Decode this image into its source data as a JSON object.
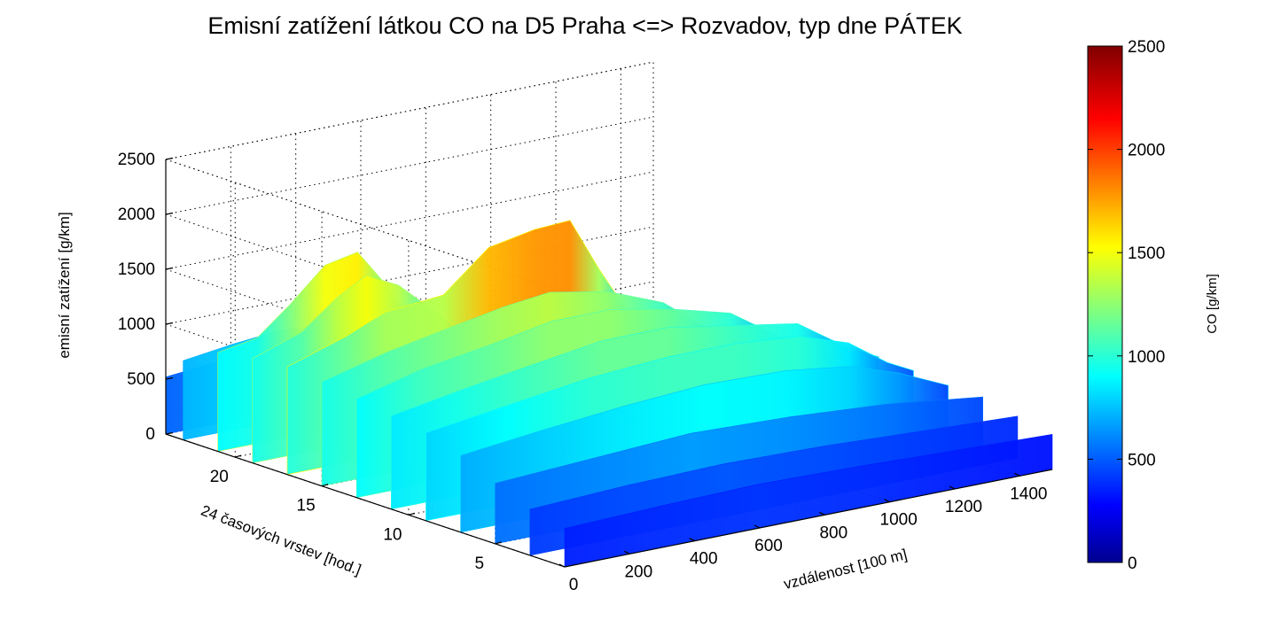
{
  "chart_data": {
    "type": "surface",
    "title": "Emisní zatížení látkou CO na D5 Praha <=> Rozvadov, typ dne PÁTEK",
    "xlabel": "vzdálenost [100 m]",
    "ylabel": "24 časových vrstev [hod.]",
    "zlabel": "emisní zatížení [g/km]",
    "xlim": [
      0,
      1500
    ],
    "ylim": [
      1,
      24
    ],
    "zlim": [
      0,
      2500
    ],
    "x_ticks": [
      "0",
      "200",
      "400",
      "600",
      "800",
      "1000",
      "1200",
      "1400"
    ],
    "y_ticks": [
      "5",
      "10",
      "15",
      "20"
    ],
    "z_ticks": [
      "0",
      "500",
      "1000",
      "1500",
      "2000",
      "2500"
    ],
    "grid": true,
    "colormap": "jet",
    "colorbar": {
      "label": "CO [g/km]",
      "ticks": [
        "0",
        "500",
        "1000",
        "1500",
        "2000",
        "2500"
      ],
      "range": [
        0,
        2500
      ],
      "colors": [
        "#00008f",
        "#0000ff",
        "#00ffff",
        "#ffff00",
        "#ff0000",
        "#800000"
      ]
    },
    "profiles": [
      {
        "hour": 24,
        "points": [
          [
            0,
            520
          ],
          [
            150,
            560
          ],
          [
            300,
            600
          ],
          [
            380,
            580
          ],
          [
            480,
            500
          ]
        ]
      },
      {
        "hour": 23,
        "points": [
          [
            0,
            720
          ],
          [
            150,
            780
          ],
          [
            300,
            820
          ],
          [
            400,
            790
          ],
          [
            500,
            700
          ]
        ]
      },
      {
        "hour": 21,
        "points": [
          [
            0,
            900
          ],
          [
            120,
            960
          ],
          [
            220,
            1200
          ],
          [
            330,
            1500
          ],
          [
            430,
            1560
          ],
          [
            520,
            1200
          ],
          [
            600,
            750
          ]
        ]
      },
      {
        "hour": 19,
        "points": [
          [
            0,
            950
          ],
          [
            150,
            1100
          ],
          [
            260,
            1350
          ],
          [
            350,
            1500
          ],
          [
            450,
            1350
          ],
          [
            560,
            1050
          ],
          [
            680,
            700
          ]
        ]
      },
      {
        "hour": 17,
        "points": [
          [
            0,
            980
          ],
          [
            180,
            1150
          ],
          [
            300,
            1300
          ],
          [
            480,
            1350
          ],
          [
            620,
            1700
          ],
          [
            760,
            1780
          ],
          [
            870,
            1800
          ],
          [
            960,
            1300
          ],
          [
            1060,
            800
          ],
          [
            1160,
            600
          ]
        ]
      },
      {
        "hour": 15,
        "points": [
          [
            0,
            950
          ],
          [
            200,
            1100
          ],
          [
            380,
            1200
          ],
          [
            560,
            1300
          ],
          [
            700,
            1350
          ],
          [
            880,
            1250
          ],
          [
            1050,
            1050
          ],
          [
            1200,
            700
          ],
          [
            1350,
            550
          ]
        ]
      },
      {
        "hour": 13,
        "points": [
          [
            0,
            900
          ],
          [
            200,
            1050
          ],
          [
            420,
            1150
          ],
          [
            600,
            1250
          ],
          [
            780,
            1250
          ],
          [
            960,
            1150
          ],
          [
            1150,
            1000
          ],
          [
            1300,
            700
          ],
          [
            1450,
            500
          ]
        ]
      },
      {
        "hour": 11,
        "points": [
          [
            0,
            850
          ],
          [
            200,
            950
          ],
          [
            420,
            1050
          ],
          [
            650,
            1150
          ],
          [
            850,
            1150
          ],
          [
            1050,
            1050
          ],
          [
            1250,
            950
          ],
          [
            1400,
            650
          ],
          [
            1500,
            500
          ]
        ]
      },
      {
        "hour": 9,
        "points": [
          [
            0,
            800
          ],
          [
            250,
            900
          ],
          [
            500,
            1000
          ],
          [
            750,
            1050
          ],
          [
            950,
            1050
          ],
          [
            1150,
            1000
          ],
          [
            1300,
            850
          ],
          [
            1420,
            600
          ],
          [
            1500,
            480
          ]
        ]
      },
      {
        "hour": 7,
        "points": [
          [
            0,
            700
          ],
          [
            250,
            780
          ],
          [
            500,
            850
          ],
          [
            750,
            900
          ],
          [
            1000,
            880
          ],
          [
            1200,
            800
          ],
          [
            1350,
            650
          ],
          [
            1500,
            450
          ]
        ]
      },
      {
        "hour": 5,
        "points": [
          [
            0,
            550
          ],
          [
            300,
            600
          ],
          [
            600,
            650
          ],
          [
            900,
            620
          ],
          [
            1200,
            560
          ],
          [
            1500,
            450
          ]
        ]
      },
      {
        "hour": 3,
        "points": [
          [
            0,
            420
          ],
          [
            300,
            460
          ],
          [
            600,
            480
          ],
          [
            900,
            460
          ],
          [
            1200,
            420
          ],
          [
            1500,
            380
          ]
        ]
      },
      {
        "hour": 1,
        "points": [
          [
            0,
            350
          ],
          [
            300,
            380
          ],
          [
            600,
            400
          ],
          [
            900,
            380
          ],
          [
            1200,
            350
          ],
          [
            1500,
            320
          ]
        ]
      }
    ]
  }
}
